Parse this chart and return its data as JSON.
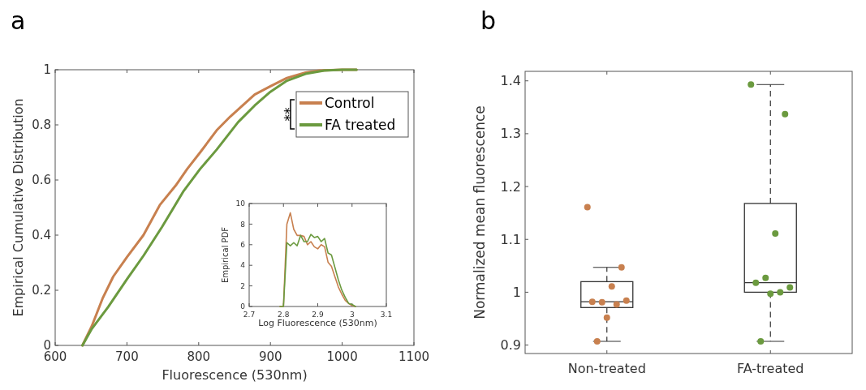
{
  "chart_data": [
    {
      "type": "line",
      "title": "a",
      "xlabel": "Fluorescence (530nm)",
      "ylabel": "Empirical Cumulative Distribution",
      "xlim": [
        600,
        1100
      ],
      "xticks": [
        600,
        700,
        800,
        900,
        1000,
        1100
      ],
      "ylim": [
        0,
        1
      ],
      "yticks": [
        0,
        0.2,
        0.4,
        0.6,
        0.8,
        1
      ],
      "legend": "top right",
      "line_style": "solid",
      "annotations": [
        "**"
      ],
      "series": [
        {
          "name": "Control",
          "color": "#c8804f",
          "x": [
            638,
            651,
            666,
            681,
            700,
            723,
            746,
            768,
            784,
            802,
            825,
            844,
            878,
            900,
            923,
            949,
            968,
            1000,
            1020
          ],
          "values": [
            0,
            0.07,
            0.17,
            0.25,
            0.32,
            0.4,
            0.51,
            0.58,
            0.64,
            0.7,
            0.78,
            0.83,
            0.91,
            0.94,
            0.97,
            0.99,
            0.997,
            1,
            1
          ]
        },
        {
          "name": "FA treated",
          "color": "#6b9a3f",
          "x": [
            638,
            651,
            674,
            700,
            723,
            749,
            779,
            802,
            825,
            855,
            878,
            900,
            923,
            949,
            975,
            1000,
            1020
          ],
          "values": [
            0,
            0.06,
            0.14,
            0.24,
            0.325,
            0.43,
            0.56,
            0.64,
            0.71,
            0.81,
            0.87,
            0.92,
            0.96,
            0.985,
            0.997,
            1,
            1
          ]
        }
      ]
    },
    {
      "type": "line",
      "xlabel": "Log Fluorescence (530nm)",
      "ylabel": "Empirical PDF",
      "xlim": [
        2.7,
        3.1
      ],
      "xticks": [
        2.7,
        2.8,
        2.9,
        3,
        3.1
      ],
      "ylim": [
        0,
        10
      ],
      "yticks": [
        0,
        2,
        4,
        6,
        8,
        10
      ],
      "line_style": "solid",
      "x": [
        2.79,
        2.8,
        2.81,
        2.82,
        2.83,
        2.84,
        2.85,
        2.86,
        2.87,
        2.88,
        2.89,
        2.9,
        2.91,
        2.92,
        2.93,
        2.94,
        2.95,
        2.96,
        2.97,
        2.98,
        2.99,
        3,
        3.01
      ],
      "series": [
        {
          "color": "#c8804f",
          "values": [
            0,
            0,
            8,
            9.1,
            7.5,
            6.9,
            6.9,
            6.8,
            6,
            6.3,
            5.8,
            5.6,
            6,
            5.8,
            4.3,
            3.9,
            2.9,
            1.9,
            1.2,
            0.6,
            0.3,
            0.1,
            0
          ]
        },
        {
          "color": "#6b9a3f",
          "values": [
            0,
            0,
            6.2,
            5.9,
            6.2,
            5.9,
            6.9,
            6.3,
            6.3,
            7,
            6.7,
            6.8,
            6.3,
            6.6,
            5.2,
            5,
            3.8,
            2.6,
            1.6,
            0.9,
            0.3,
            0.2,
            0
          ]
        }
      ]
    },
    {
      "type": "box",
      "title": "b",
      "ylabel": "Normalized mean fluorescence",
      "categories": [
        "Non-treated",
        "FA-treated"
      ],
      "ylim": [
        0.884,
        1.418
      ],
      "yticks": [
        0.9,
        1,
        1.1,
        1.2,
        1.3,
        1.4
      ],
      "marker": "circle",
      "boxes": [
        {
          "low": 0.907,
          "q1": 0.971,
          "median": 0.982,
          "q3": 1.02,
          "high": 1.047
        },
        {
          "low": 0.907,
          "q1": 1.0,
          "median": 1.018,
          "q3": 1.168,
          "high": 1.393
        }
      ],
      "series": [
        {
          "type": "scatter",
          "color": "#c8804f",
          "x": [
            "Non-treated",
            "Non-treated",
            "Non-treated",
            "Non-treated",
            "Non-treated",
            "Non-treated",
            "Non-treated",
            "Non-treated",
            "Non-treated"
          ],
          "values": [
            1.161,
            1.047,
            1.011,
            0.981,
            0.982,
            0.984,
            0.977,
            0.952,
            0.907
          ]
        },
        {
          "type": "scatter",
          "color": "#6b9a3f",
          "x": [
            "FA-treated",
            "FA-treated",
            "FA-treated",
            "FA-treated",
            "FA-treated",
            "FA-treated",
            "FA-treated",
            "FA-treated",
            "FA-treated"
          ],
          "values": [
            1.393,
            1.337,
            1.111,
            1.027,
            1.018,
            1.009,
            1.0,
            0.997,
            0.907
          ]
        }
      ]
    }
  ]
}
